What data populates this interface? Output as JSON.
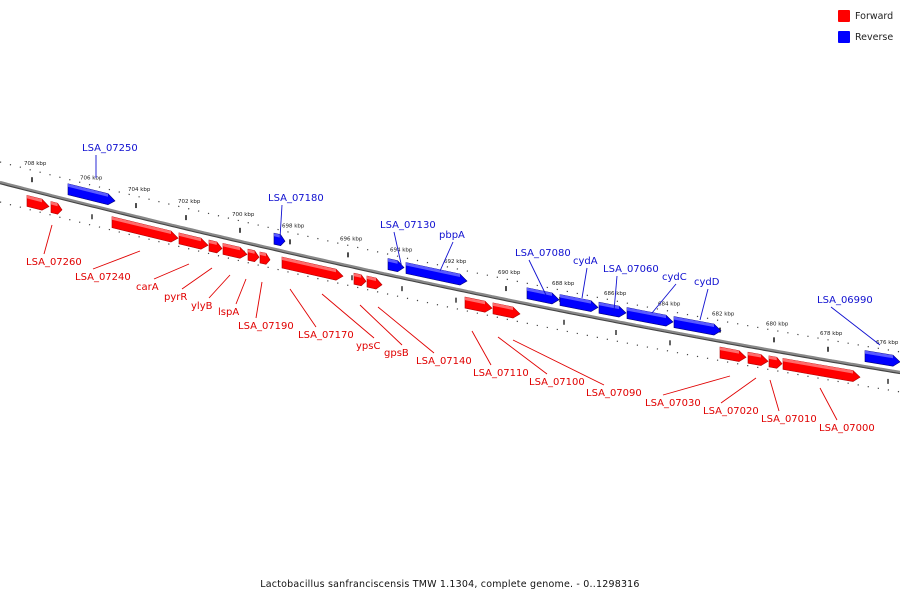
{
  "legend": [
    {
      "label": "Forward",
      "color": "#ff0000"
    },
    {
      "label": "Reverse",
      "color": "#0000ff"
    }
  ],
  "footer": "Lactobacillus sanfranciscensis TMW 1.1304, complete genome. - 0..1298316",
  "colors": {
    "forward": "#ff0000",
    "reverse": "#0000ff",
    "backbone": "#888888"
  },
  "ticks": [
    "708 kbp",
    "706 kbp",
    "704 kbp",
    "702 kbp",
    "700 kbp",
    "698 kbp",
    "696 kbp",
    "694 kbp",
    "692 kbp",
    "690 kbp",
    "688 kbp",
    "686 kbp",
    "684 kbp",
    "682 kbp",
    "680 kbp",
    "678 kbp",
    "676 kbp"
  ],
  "genes": [
    {
      "id": "LSA_07250",
      "label": "LSA_07250",
      "strand": "reverse"
    },
    {
      "id": "LSA_07180",
      "label": "LSA_07180",
      "strand": "reverse"
    },
    {
      "id": "LSA_07130",
      "label": "LSA_07130",
      "strand": "reverse"
    },
    {
      "id": "pbpA",
      "label": "pbpA",
      "strand": "reverse"
    },
    {
      "id": "LSA_07080",
      "label": "LSA_07080",
      "strand": "reverse"
    },
    {
      "id": "cydA",
      "label": "cydA",
      "strand": "reverse"
    },
    {
      "id": "LSA_07060",
      "label": "LSA_07060",
      "strand": "reverse"
    },
    {
      "id": "cydC",
      "label": "cydC",
      "strand": "reverse"
    },
    {
      "id": "cydD",
      "label": "cydD",
      "strand": "reverse"
    },
    {
      "id": "LSA_06990",
      "label": "LSA_06990",
      "strand": "reverse"
    },
    {
      "id": "LSA_07260",
      "label": "LSA_07260",
      "strand": "forward"
    },
    {
      "id": "LSA_07240",
      "label": "LSA_07240",
      "strand": "forward"
    },
    {
      "id": "carA",
      "label": "carA",
      "strand": "forward"
    },
    {
      "id": "pyrR",
      "label": "pyrR",
      "strand": "forward"
    },
    {
      "id": "ylyB",
      "label": "ylyB",
      "strand": "forward"
    },
    {
      "id": "lspA",
      "label": "lspA",
      "strand": "forward"
    },
    {
      "id": "LSA_07190",
      "label": "LSA_07190",
      "strand": "forward"
    },
    {
      "id": "LSA_07170",
      "label": "LSA_07170",
      "strand": "forward"
    },
    {
      "id": "ypsC",
      "label": "ypsC",
      "strand": "forward"
    },
    {
      "id": "gpsB",
      "label": "gpsB",
      "strand": "forward"
    },
    {
      "id": "LSA_07140",
      "label": "LSA_07140",
      "strand": "forward"
    },
    {
      "id": "LSA_07110",
      "label": "LSA_07110",
      "strand": "forward"
    },
    {
      "id": "LSA_07100",
      "label": "LSA_07100",
      "strand": "forward"
    },
    {
      "id": "LSA_07090",
      "label": "LSA_07090",
      "strand": "forward"
    },
    {
      "id": "LSA_07030",
      "label": "LSA_07030",
      "strand": "forward"
    },
    {
      "id": "LSA_07020",
      "label": "LSA_07020",
      "strand": "forward"
    },
    {
      "id": "LSA_07010",
      "label": "LSA_07010",
      "strand": "forward"
    },
    {
      "id": "LSA_07000",
      "label": "LSA_07000",
      "strand": "forward"
    }
  ]
}
